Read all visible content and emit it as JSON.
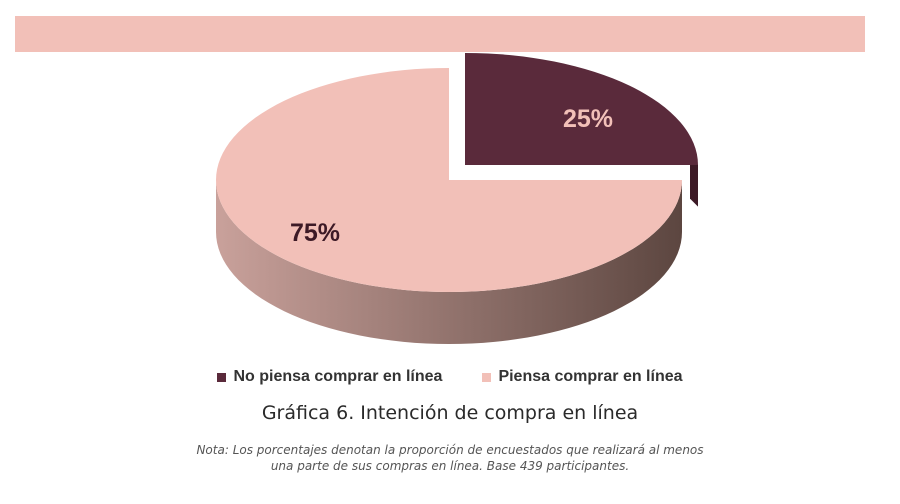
{
  "colors": {
    "band": "#f2c0b8",
    "dark_slice": "#5a2a3b",
    "dark_slice_side": "#3d1a26",
    "light_slice": "#f2c0b8",
    "light_side_left": "#c9a19b",
    "light_side_right": "#5c4640"
  },
  "chart_data": {
    "type": "pie",
    "title": "Gráfica 6. Intención de compra en línea",
    "slices": [
      {
        "name": "No piensa comprar en línea",
        "value": 25,
        "label": "25%",
        "color": "#5a2a3b",
        "exploded": true
      },
      {
        "name": "Piensa comprar en línea",
        "value": 75,
        "label": "75%",
        "color": "#f2c0b8",
        "exploded": false
      }
    ],
    "legend_position": "bottom",
    "style": "3d"
  },
  "legend": {
    "items": [
      {
        "label": "No piensa comprar en línea",
        "color": "#5a2a3b"
      },
      {
        "label": "Piensa comprar en línea",
        "color": "#f2c0b8"
      }
    ]
  },
  "caption": "Gráfica 6. Intención de compra en línea",
  "note": {
    "line1": "Nota: Los porcentajes denotan la proporción de encuestados que realizará al menos",
    "line2": "una parte de sus compras en línea. Base 439 participantes."
  }
}
